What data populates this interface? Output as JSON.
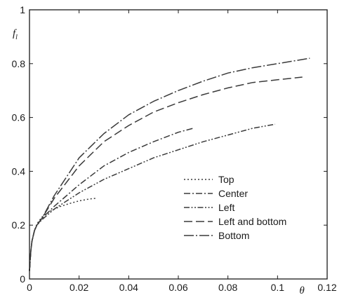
{
  "chart_data": {
    "type": "line",
    "xlabel": "θ",
    "ylabel": "f",
    "ylabel_sub": "l",
    "xlim": [
      0,
      0.12
    ],
    "ylim": [
      0,
      1
    ],
    "xticks": [
      0,
      0.02,
      0.04,
      0.06,
      0.08,
      0.1,
      0.12
    ],
    "xtick_labels": [
      "0",
      "0.02",
      "0.04",
      "0.06",
      "0.08",
      "0.1",
      "0.12"
    ],
    "yticks": [
      0,
      0.2,
      0.4,
      0.6,
      0.8,
      1
    ],
    "ytick_labels": [
      "0",
      "0.2",
      "0.4",
      "0.6",
      "0.8",
      "1"
    ],
    "grid": false,
    "legend_position": "lower-right",
    "series": [
      {
        "name": "Top",
        "style": "dotted",
        "x": [
          0,
          0.0005,
          0.001,
          0.002,
          0.003,
          0.005,
          0.008,
          0.012,
          0.016,
          0.02,
          0.024,
          0.027
        ],
        "y": [
          0.03,
          0.1,
          0.14,
          0.18,
          0.205,
          0.23,
          0.25,
          0.268,
          0.28,
          0.29,
          0.297,
          0.3
        ]
      },
      {
        "name": "Center",
        "style": "dash-dot",
        "x": [
          0,
          0.0005,
          0.001,
          0.002,
          0.003,
          0.005,
          0.01,
          0.015,
          0.02,
          0.03,
          0.04,
          0.05,
          0.06,
          0.066
        ],
        "y": [
          0.03,
          0.1,
          0.14,
          0.18,
          0.2,
          0.225,
          0.27,
          0.31,
          0.35,
          0.42,
          0.47,
          0.51,
          0.545,
          0.56
        ]
      },
      {
        "name": "Left",
        "style": "dash-dot-dot",
        "x": [
          0,
          0.0005,
          0.001,
          0.002,
          0.003,
          0.005,
          0.01,
          0.02,
          0.03,
          0.04,
          0.05,
          0.06,
          0.07,
          0.08,
          0.09,
          0.099
        ],
        "y": [
          0.03,
          0.1,
          0.14,
          0.18,
          0.2,
          0.22,
          0.26,
          0.32,
          0.37,
          0.41,
          0.45,
          0.48,
          0.51,
          0.535,
          0.56,
          0.575
        ]
      },
      {
        "name": "Left and bottom",
        "style": "long-dash",
        "x": [
          0,
          0.0005,
          0.001,
          0.002,
          0.003,
          0.005,
          0.01,
          0.02,
          0.03,
          0.04,
          0.05,
          0.06,
          0.07,
          0.08,
          0.09,
          0.1,
          0.11
        ],
        "y": [
          0.03,
          0.1,
          0.14,
          0.18,
          0.2,
          0.225,
          0.3,
          0.42,
          0.51,
          0.57,
          0.62,
          0.655,
          0.685,
          0.71,
          0.73,
          0.74,
          0.75
        ]
      },
      {
        "name": "Bottom",
        "style": "long-dash-dot",
        "x": [
          0,
          0.0005,
          0.001,
          0.002,
          0.003,
          0.005,
          0.01,
          0.02,
          0.03,
          0.04,
          0.05,
          0.06,
          0.07,
          0.08,
          0.09,
          0.1,
          0.113
        ],
        "y": [
          0.03,
          0.1,
          0.14,
          0.18,
          0.2,
          0.225,
          0.31,
          0.45,
          0.54,
          0.61,
          0.66,
          0.7,
          0.735,
          0.765,
          0.785,
          0.8,
          0.82
        ]
      }
    ]
  }
}
